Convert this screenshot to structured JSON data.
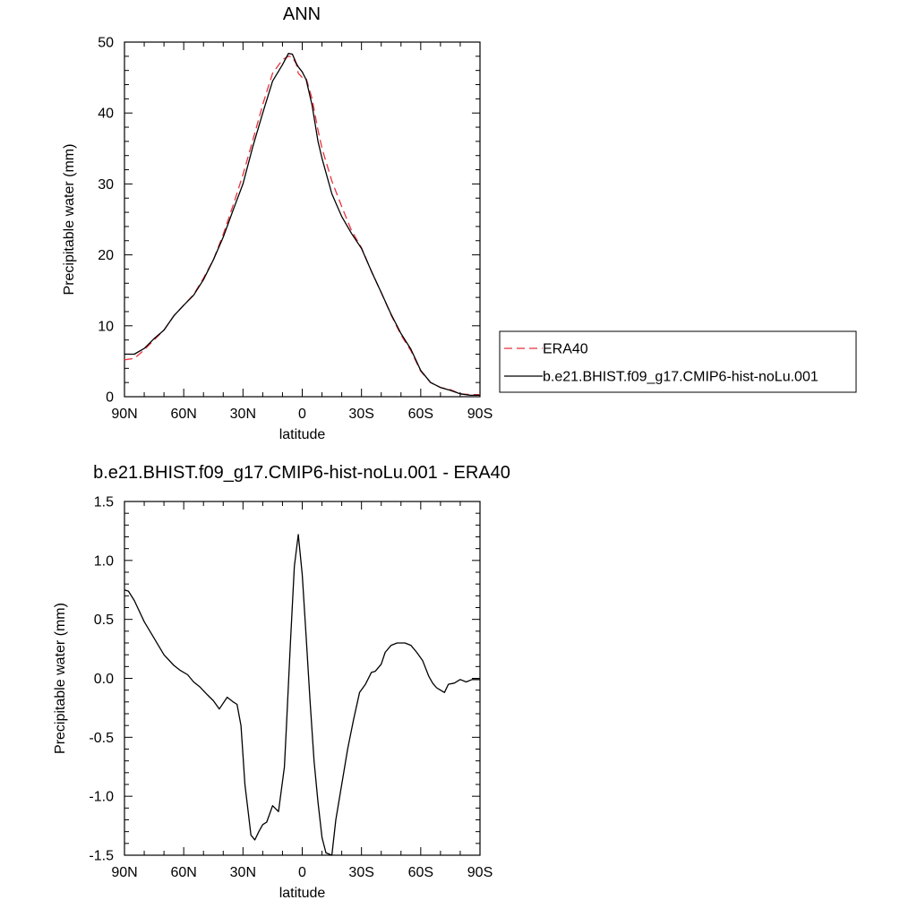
{
  "chart_data": [
    {
      "type": "line",
      "title": "ANN",
      "xlabel": "latitude",
      "ylabel": "Precipitable water (mm)",
      "xlim": [
        90,
        -90
      ],
      "ylim": [
        0,
        50
      ],
      "x_ticks": [
        90,
        60,
        30,
        0,
        -30,
        -60,
        -90
      ],
      "x_tick_labels": [
        "90N",
        "60N",
        "30N",
        "0",
        "30S",
        "60S",
        "90S"
      ],
      "y_ticks": [
        0,
        10,
        20,
        30,
        40,
        50
      ],
      "y_tick_labels": [
        "0",
        "10",
        "20",
        "30",
        "40",
        "50"
      ],
      "legend_position": "right-center",
      "series": [
        {
          "name": "ERA40",
          "color": "#e8323c",
          "dash": "dashed",
          "x": [
            90,
            85,
            80,
            75,
            70,
            65,
            60,
            55,
            50,
            45,
            40,
            35,
            30,
            25,
            20,
            15,
            10,
            7,
            5,
            3,
            2,
            0,
            -2,
            -5,
            -8,
            -10,
            -15,
            -20,
            -25,
            -30,
            -35,
            -40,
            -45,
            -50,
            -55,
            -60,
            -65,
            -70,
            -75,
            -80,
            -85,
            -90
          ],
          "y": [
            5.2,
            5.4,
            6.6,
            8.0,
            9.4,
            11.4,
            12.9,
            14.4,
            16.7,
            19.3,
            22.9,
            27.0,
            31.3,
            36.2,
            41.2,
            45.6,
            47.5,
            48.0,
            47.9,
            46.9,
            45.6,
            45.0,
            44.9,
            42.0,
            37.6,
            35.0,
            30.4,
            26.8,
            23.4,
            21.0,
            17.7,
            14.7,
            11.5,
            8.7,
            6.5,
            3.6,
            2.0,
            1.3,
            1.0,
            0.4,
            0.3,
            0.3
          ]
        },
        {
          "name": "b.e21.BHIST.f09_g17.CMIP6-hist-noLu.001",
          "color": "#000000",
          "dash": "solid",
          "x": [
            90,
            85,
            80,
            75,
            70,
            65,
            60,
            55,
            50,
            45,
            40,
            35,
            30,
            25,
            20,
            15,
            10,
            7,
            5,
            3,
            2,
            0,
            -2,
            -5,
            -8,
            -10,
            -15,
            -20,
            -25,
            -30,
            -35,
            -40,
            -45,
            -50,
            -55,
            -60,
            -65,
            -70,
            -75,
            -80,
            -85,
            -90
          ],
          "y": [
            6.0,
            6.0,
            6.8,
            8.2,
            9.4,
            11.4,
            12.9,
            14.3,
            16.5,
            19.3,
            22.5,
            26.3,
            30.0,
            35.3,
            40.0,
            44.5,
            46.8,
            48.4,
            48.3,
            47.0,
            46.5,
            45.8,
            44.7,
            41.1,
            36.0,
            33.6,
            28.6,
            25.4,
            23.0,
            20.9,
            17.7,
            14.7,
            11.6,
            8.9,
            6.7,
            3.7,
            2.0,
            1.3,
            0.9,
            0.4,
            0.2,
            0.2
          ]
        }
      ]
    },
    {
      "type": "line",
      "title": "b.e21.BHIST.f09_g17.CMIP6-hist-noLu.001 - ERA40",
      "xlabel": "latitude",
      "ylabel": "Precipitable water (mm)",
      "xlim": [
        90,
        -90
      ],
      "ylim": [
        -1.5,
        1.5
      ],
      "x_ticks": [
        90,
        60,
        30,
        0,
        -30,
        -60,
        -90
      ],
      "x_tick_labels": [
        "90N",
        "60N",
        "30N",
        "0",
        "30S",
        "60S",
        "90S"
      ],
      "y_ticks": [
        -1.5,
        -1.0,
        -0.5,
        0.0,
        0.5,
        1.0,
        1.5
      ],
      "y_tick_labels": [
        "-1.5",
        "-1.0",
        "-0.5",
        "0.0",
        "0.5",
        "1.0",
        "1.5"
      ],
      "series": [
        {
          "color": "#000000",
          "dash": "solid",
          "x": [
            90,
            88,
            85,
            80,
            75,
            70,
            65,
            62,
            58,
            55,
            52,
            48,
            45,
            42,
            38,
            35,
            33,
            31,
            29,
            27,
            26,
            24,
            22,
            20,
            18,
            15,
            12,
            9,
            8,
            6,
            4,
            2,
            0,
            -2,
            -4,
            -6,
            -8,
            -10,
            -12,
            -15,
            -17,
            -20,
            -23,
            -26,
            -29,
            -32,
            -35,
            -37,
            -40,
            -42,
            -45,
            -48,
            -52,
            -55,
            -58,
            -61,
            -64,
            -66,
            -68,
            -70,
            -72,
            -74,
            -77,
            -80,
            -83,
            -86,
            -88,
            -90
          ],
          "y": [
            0.75,
            0.74,
            0.66,
            0.48,
            0.34,
            0.2,
            0.11,
            0.07,
            0.03,
            -0.03,
            -0.07,
            -0.14,
            -0.19,
            -0.26,
            -0.16,
            -0.2,
            -0.22,
            -0.4,
            -0.9,
            -1.18,
            -1.33,
            -1.37,
            -1.3,
            -1.24,
            -1.22,
            -1.08,
            -1.13,
            -0.75,
            -0.4,
            0.3,
            0.95,
            1.22,
            0.88,
            0.35,
            -0.2,
            -0.7,
            -1.05,
            -1.35,
            -1.48,
            -1.5,
            -1.2,
            -0.9,
            -0.6,
            -0.35,
            -0.12,
            -0.05,
            0.05,
            0.06,
            0.12,
            0.22,
            0.28,
            0.3,
            0.3,
            0.28,
            0.22,
            0.15,
            0.02,
            -0.04,
            -0.08,
            -0.1,
            -0.12,
            -0.05,
            -0.04,
            -0.01,
            -0.03,
            -0.01,
            -0.01,
            -0.01
          ]
        }
      ]
    }
  ]
}
